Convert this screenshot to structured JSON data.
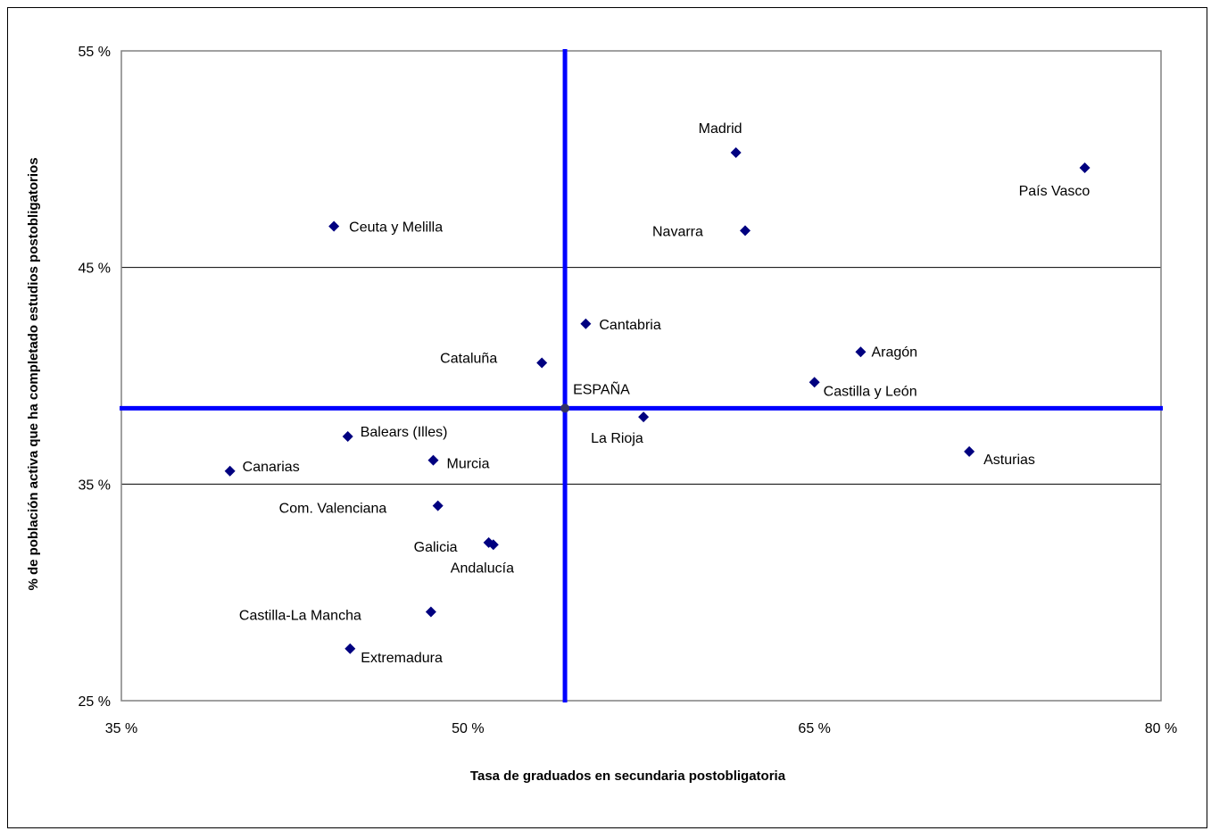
{
  "chart_data": {
    "type": "scatter",
    "xlabel": "Tasa de graduados en secundaria postobligatoria",
    "ylabel": "% de población activa que ha completado estudios postobligatorios",
    "xlim": [
      35,
      80
    ],
    "ylim": [
      25,
      55
    ],
    "x_ticks": [
      "35 %",
      "50 %",
      "65 %",
      "80 %"
    ],
    "y_ticks": [
      "55 %",
      "45 %",
      "35 %",
      "25 %"
    ],
    "grid": "horizontal",
    "marker_color": "#000080",
    "reference_line_color": "#0000FF",
    "reference": {
      "name": "ESPAÑA",
      "x": 54.2,
      "y": 38.5
    },
    "points": [
      {
        "name": "Madrid",
        "x": 61.6,
        "y": 50.3
      },
      {
        "name": "País Vasco",
        "x": 76.7,
        "y": 49.6
      },
      {
        "name": "Ceuta y Melilla",
        "x": 44.2,
        "y": 46.9
      },
      {
        "name": "Navarra",
        "x": 62.0,
        "y": 46.7
      },
      {
        "name": "Cantabria",
        "x": 55.1,
        "y": 42.4
      },
      {
        "name": "Aragón",
        "x": 67.0,
        "y": 41.1
      },
      {
        "name": "Cataluña",
        "x": 53.2,
        "y": 40.6
      },
      {
        "name": "Castilla y León",
        "x": 65.0,
        "y": 39.7
      },
      {
        "name": "La Rioja",
        "x": 57.6,
        "y": 38.1
      },
      {
        "name": "Balears (Illes)",
        "x": 44.8,
        "y": 37.2
      },
      {
        "name": "Asturias",
        "x": 71.7,
        "y": 36.5
      },
      {
        "name": "Murcia",
        "x": 48.5,
        "y": 36.1
      },
      {
        "name": "Canarias",
        "x": 39.7,
        "y": 35.6
      },
      {
        "name": "Com. Valenciana",
        "x": 48.7,
        "y": 34.0
      },
      {
        "name": "Galicia",
        "x": 50.9,
        "y": 32.3
      },
      {
        "name": "Andalucía",
        "x": 51.1,
        "y": 32.2
      },
      {
        "name": "Castilla-La Mancha",
        "x": 48.4,
        "y": 29.1
      },
      {
        "name": "Extremadura",
        "x": 44.9,
        "y": 27.4
      }
    ]
  }
}
